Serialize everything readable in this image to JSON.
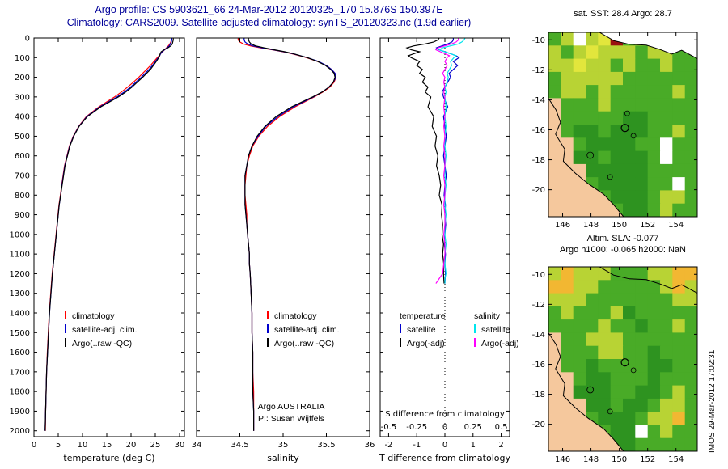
{
  "header": {
    "title_line1": "Argo profile: CS 5903621_66 24-Mar-2012 20120325_170 15.876S 150.397E",
    "title_line2": "Climatology: CARS2009. Satellite-adjusted climatology: synTS_20120323.nc (1.9d earlier)"
  },
  "colors": {
    "header_text": "#000099",
    "climatology": "#ff0000",
    "satellite": "#0000cd",
    "argo": "#000000",
    "salinity_satellite": "#00e5ee",
    "salinity_argo": "#ff00ff",
    "land": "#f5c89d"
  },
  "annotations": {
    "line1": "Argo AUSTRALIA",
    "line2": "PI: Susan Wijffels"
  },
  "watermark": "IMOS 29-Mar-2012 17:02:31",
  "chart_data": [
    {
      "id": "temperature",
      "type": "line",
      "xlabel": "temperature (deg C)",
      "xlim": [
        0,
        31
      ],
      "xticks": [
        0,
        5,
        10,
        15,
        20,
        25,
        30
      ],
      "ylim": [
        0,
        2030
      ],
      "yticks": [
        0,
        100,
        200,
        300,
        400,
        500,
        600,
        700,
        800,
        900,
        1000,
        1100,
        1200,
        1300,
        1400,
        1500,
        1600,
        1700,
        1800,
        1900,
        2000
      ],
      "depths": [
        0,
        10,
        20,
        30,
        40,
        50,
        60,
        70,
        80,
        90,
        100,
        120,
        140,
        160,
        180,
        200,
        225,
        250,
        275,
        300,
        350,
        400,
        450,
        500,
        550,
        600,
        650,
        700,
        750,
        800,
        850,
        900,
        950,
        1000,
        1050,
        1100,
        1150,
        1200,
        1300,
        1400,
        1500,
        1600,
        1700,
        1800,
        1900,
        2000
      ],
      "series": [
        {
          "name": "climatology",
          "color": "#ff0000",
          "values": [
            28.3,
            28.3,
            28.2,
            28.0,
            27.7,
            27.3,
            26.9,
            26.5,
            26.1,
            25.8,
            25.4,
            24.7,
            24.0,
            23.2,
            22.4,
            21.6,
            20.5,
            19.3,
            18.0,
            16.6,
            13.4,
            10.8,
            9.2,
            8.1,
            7.3,
            6.8,
            6.3,
            6.0,
            5.7,
            5.45,
            5.15,
            4.95,
            4.75,
            4.55,
            4.35,
            4.15,
            3.95,
            3.75,
            3.45,
            3.15,
            2.95,
            2.75,
            2.6,
            2.5,
            2.4,
            2.35
          ]
        },
        {
          "name": "satellite-adj. clim.",
          "color": "#0000cd",
          "values": [
            28.4,
            28.4,
            28.3,
            28.1,
            27.9,
            27.4,
            26.9,
            26.4,
            26.1,
            25.9,
            25.6,
            25.0,
            24.4,
            23.7,
            22.9,
            22.1,
            21.0,
            19.9,
            18.6,
            17.1,
            13.6,
            10.9,
            9.25,
            8.15,
            7.35,
            6.85,
            6.35,
            6.05,
            5.75,
            5.5,
            5.2,
            5.0,
            4.8,
            4.6,
            4.4,
            4.2,
            4.0,
            3.8,
            3.5,
            3.2,
            3.0,
            2.8,
            2.6,
            2.5,
            2.4,
            2.3
          ]
        },
        {
          "name": "Argo(..raw -QC)",
          "color": "#000000",
          "values": [
            28.7,
            28.7,
            28.6,
            28.5,
            28.2,
            27.6,
            26.8,
            26.2,
            26.0,
            25.9,
            25.7,
            25.2,
            24.6,
            24.0,
            23.2,
            22.4,
            21.3,
            20.2,
            18.9,
            17.4,
            13.8,
            11.0,
            9.3,
            8.2,
            7.4,
            6.9,
            6.4,
            6.1,
            5.8,
            5.5,
            5.2,
            5.0,
            4.8,
            4.6,
            4.4,
            4.2,
            4.0,
            3.8,
            3.5,
            3.2,
            3.0,
            2.8,
            2.6,
            2.5,
            2.4,
            2.3
          ]
        }
      ]
    },
    {
      "id": "salinity",
      "type": "line",
      "xlabel": "salinity",
      "xlim": [
        34,
        36
      ],
      "xticks": [
        34,
        34.5,
        35,
        35.5,
        36
      ],
      "xtick_labels": [
        "34",
        "34.5",
        "35",
        "35.5",
        "36"
      ],
      "ylim": [
        0,
        2030
      ],
      "yticks": [
        0,
        100,
        200,
        300,
        400,
        500,
        600,
        700,
        800,
        900,
        1000,
        1100,
        1200,
        1300,
        1400,
        1500,
        1600,
        1700,
        1800,
        1900,
        2000
      ],
      "depths": [
        0,
        10,
        20,
        30,
        40,
        50,
        60,
        70,
        80,
        90,
        100,
        120,
        140,
        160,
        180,
        200,
        225,
        250,
        275,
        300,
        350,
        400,
        450,
        500,
        550,
        600,
        650,
        700,
        750,
        800,
        850,
        900,
        950,
        1000,
        1050,
        1100,
        1150,
        1200,
        1300,
        1400,
        1500,
        1600,
        1700,
        1800,
        1900,
        2000
      ],
      "series": [
        {
          "name": "climatology",
          "color": "#ff0000",
          "values": [
            34.48,
            34.48,
            34.5,
            34.54,
            34.62,
            34.74,
            34.88,
            35.0,
            35.1,
            35.19,
            35.27,
            35.4,
            35.5,
            35.56,
            35.6,
            35.61,
            35.59,
            35.54,
            35.46,
            35.36,
            35.14,
            34.96,
            34.82,
            34.72,
            34.65,
            34.61,
            34.58,
            34.57,
            34.56,
            34.56,
            34.57,
            34.58,
            34.58,
            34.59,
            34.6,
            34.61,
            34.61,
            34.62,
            34.63,
            34.64,
            34.64,
            34.65,
            34.65,
            34.66,
            34.66,
            34.66
          ]
        },
        {
          "name": "satellite-adj. clim.",
          "color": "#0000cd",
          "values": [
            34.55,
            34.55,
            34.56,
            34.59,
            34.65,
            34.76,
            34.89,
            35.01,
            35.11,
            35.2,
            35.28,
            35.41,
            35.5,
            35.56,
            35.6,
            35.61,
            35.58,
            35.53,
            35.45,
            35.35,
            35.12,
            34.94,
            34.8,
            34.71,
            34.64,
            34.6,
            34.58,
            34.56,
            34.56,
            34.56,
            34.56,
            34.57,
            34.58,
            34.59,
            34.6,
            34.61,
            34.61,
            34.62,
            34.63,
            34.64,
            34.64,
            34.65,
            34.65,
            34.65,
            34.66,
            34.66
          ]
        },
        {
          "name": "Argo(..raw -QC)",
          "color": "#000000",
          "values": [
            34.6,
            34.6,
            34.61,
            34.63,
            34.68,
            34.78,
            34.9,
            35.02,
            35.12,
            35.2,
            35.28,
            35.4,
            35.49,
            35.55,
            35.59,
            35.6,
            35.58,
            35.53,
            35.45,
            35.34,
            35.1,
            34.92,
            34.79,
            34.7,
            34.64,
            34.6,
            34.58,
            34.56,
            34.56,
            34.56,
            34.56,
            34.57,
            34.58,
            34.59,
            34.6,
            34.61,
            34.61,
            34.62,
            34.63,
            34.64,
            34.64,
            34.65,
            34.65,
            34.65,
            34.66,
            34.66
          ]
        }
      ]
    },
    {
      "id": "difference",
      "type": "line",
      "xlabel": "T difference from climatology",
      "xlim": [
        -2.3,
        2.3
      ],
      "xticks": [
        -2,
        -1,
        0,
        1,
        2
      ],
      "xtick_labels": [
        "-2",
        "-1",
        "0",
        "1",
        "2"
      ],
      "ylim": [
        0,
        2030
      ],
      "yticks": [
        0,
        100,
        200,
        300,
        400,
        500,
        600,
        700,
        800,
        900,
        1000,
        1100,
        1200,
        1300,
        1400,
        1500,
        1600,
        1700,
        1800,
        1900,
        2000
      ],
      "zero_line": true,
      "legend_headers": [
        "temperature",
        "salinity"
      ],
      "inner_axis": {
        "label": "S difference from climatology",
        "ticks": [
          -0.5,
          -0.25,
          0,
          0.25,
          0.5
        ],
        "labels": [
          "-0.5",
          "-0.25",
          "0",
          "0.25",
          "0.5"
        ],
        "scale": 4
      },
      "depths": [
        0,
        10,
        20,
        30,
        40,
        50,
        60,
        70,
        80,
        90,
        100,
        120,
        140,
        160,
        180,
        200,
        225,
        250,
        275,
        300,
        350,
        400,
        450,
        500,
        550,
        600,
        650,
        700,
        750,
        800,
        850,
        900,
        950,
        1000,
        1050,
        1100,
        1150,
        1200,
        1225,
        1250
      ],
      "series": [
        {
          "name": "satellite",
          "color": "#0000cd",
          "values": [
            0.3,
            0.3,
            0.25,
            0.1,
            -0.1,
            -0.3,
            -0.2,
            0.0,
            0.2,
            0.4,
            0.5,
            0.3,
            0.45,
            0.3,
            0.15,
            0.2,
            0.1,
            0.0,
            -0.1,
            -0.05,
            0.1,
            -0.05,
            0.0,
            0.05,
            0.0,
            -0.05,
            0.0,
            0.05,
            0.0,
            -0.03,
            0.02,
            0.0,
            0.03,
            0.0,
            -0.02,
            0.02,
            0.0,
            0.02,
            0.01,
            0.0
          ]
        },
        {
          "name": "Argo(-adj)",
          "color": "#000000",
          "values": [
            -0.2,
            -0.25,
            -0.4,
            -0.7,
            -1.1,
            -1.35,
            -1.2,
            -0.9,
            -1.1,
            -1.3,
            -1.2,
            -0.9,
            -1.0,
            -0.8,
            -0.9,
            -0.7,
            -0.8,
            -0.6,
            -0.7,
            -0.5,
            -0.6,
            -0.4,
            -0.45,
            -0.3,
            -0.35,
            -0.25,
            -0.3,
            -0.2,
            -0.15,
            -0.2,
            -0.1,
            -0.12,
            -0.08,
            -0.1,
            -0.05,
            -0.08,
            -0.04,
            -0.05,
            -0.04,
            -0.03
          ]
        },
        {
          "name": "satellite",
          "color": "#00e5ee",
          "scale": 4,
          "values": [
            0.18,
            0.17,
            0.15,
            0.12,
            0.05,
            -0.02,
            -0.05,
            0.0,
            0.05,
            0.1,
            0.08,
            0.05,
            0.06,
            0.04,
            0.02,
            0.03,
            0.02,
            0.0,
            0.01,
            0.0,
            0.01,
            0.0,
            0.01,
            0.0,
            0.0,
            0.01,
            0.0,
            0.0,
            0.01,
            0.0,
            0.0,
            0.01,
            0.0,
            0.0,
            0.01,
            0.0,
            0.0,
            0.01,
            0.0,
            0.0
          ]
        },
        {
          "name": "Argo(-adj)",
          "color": "#ff00ff",
          "scale": 4,
          "values": [
            0.12,
            0.12,
            0.1,
            0.06,
            0.0,
            -0.06,
            -0.08,
            -0.04,
            0.0,
            0.04,
            0.02,
            0.0,
            0.02,
            0.0,
            -0.02,
            0.0,
            -0.01,
            0.0,
            -0.01,
            0.0,
            -0.01,
            0.0,
            -0.01,
            0.0,
            -0.01,
            0.0,
            0.0,
            -0.01,
            0.0,
            0.0,
            -0.01,
            0.0,
            0.0,
            -0.01,
            0.0,
            0.0,
            -0.01,
            -0.02,
            -0.05,
            -0.08
          ]
        }
      ]
    },
    {
      "id": "sst_map",
      "type": "heatmap",
      "title": "sat. SST: 28.4 Argo: 28.7",
      "xlim": [
        145,
        155.5
      ],
      "ylim": [
        -21.8,
        -9.5
      ],
      "xticks": [
        146,
        148,
        150,
        152,
        154
      ],
      "yticks": [
        -10,
        -12,
        -14,
        -16,
        -18,
        -20
      ],
      "palette": {
        "G": "#2e9320",
        "g": "#49ab27",
        "l": "#86c43a",
        "y": "#b8d334",
        "Y": "#e2e63c",
        "o": "#f2b732",
        "w": "#ffffff",
        "r": "#991111",
        "t": "#f5c89d"
      },
      "grid": [
        "gywyYrgyyygg",
        "ygyYyyygyygg",
        "yyYyygyggygg",
        "gyyyyygggggg",
        "gyygygggggyg",
        "tgggyggggggg",
        "tgggggGGgggg",
        "tgGGgGGGggyg",
        "ttgGGGGggwgg",
        "ttGGgGGGgwgg",
        "tttGGGGGgggg",
        "tttgGGGGggwg",
        "ttttgGGGgyyg",
        "ttttGgGGgygg"
      ],
      "land_color": "#f5c89d",
      "land": [
        [
          145.0,
          -13.9
        ],
        [
          145.55,
          -14.7
        ],
        [
          145.85,
          -15.5
        ],
        [
          145.5,
          -16.3
        ],
        [
          146.15,
          -17.3
        ],
        [
          146.05,
          -18.1
        ],
        [
          146.9,
          -18.9
        ],
        [
          147.8,
          -19.6
        ],
        [
          148.9,
          -20.3
        ],
        [
          149.6,
          -21.0
        ],
        [
          150.3,
          -21.8
        ],
        [
          145.0,
          -21.8
        ]
      ],
      "png_fill": "#ffffff",
      "png": [
        [
          148.6,
          -9.5
        ],
        [
          149.6,
          -10.05
        ],
        [
          150.7,
          -10.3
        ],
        [
          151.9,
          -10.35
        ],
        [
          152.9,
          -10.65
        ],
        [
          153.7,
          -10.95
        ],
        [
          154.4,
          -10.7
        ],
        [
          155.5,
          -11.25
        ],
        [
          155.5,
          -9.5
        ]
      ],
      "reefs": [
        {
          "lon": 147.95,
          "lat": -17.7,
          "r": 4
        },
        {
          "lon": 149.35,
          "lat": -19.15,
          "r": 3
        },
        {
          "lon": 151.0,
          "lat": -16.4,
          "r": 3
        },
        {
          "lon": 150.55,
          "lat": -14.9,
          "r": 3
        }
      ],
      "marker": {
        "lon": 150.397,
        "lat": -15.876
      }
    },
    {
      "id": "sla_map",
      "type": "heatmap",
      "title_line1": "Altim. SLA: -0.077",
      "title_line2": "Argo h1000: -0.065 h2000: NaN",
      "xlim": [
        145,
        155.5
      ],
      "ylim": [
        -21.8,
        -9.5
      ],
      "xticks": [
        146,
        148,
        150,
        152,
        154
      ],
      "yticks": [
        -10,
        -12,
        -14,
        -16,
        -18,
        -20
      ],
      "palette": {
        "G": "#2e9320",
        "g": "#49ab27",
        "l": "#86c43a",
        "y": "#b8d334",
        "Y": "#e2e63c",
        "o": "#f2b732",
        "w": "#ffffff",
        "r": "#991111",
        "t": "#f5c89d"
      },
      "grid": [
        "yoyyygggyyoo",
        "ooyygggggyoy",
        "yyygggggggyy",
        "gygggyGggggg",
        "ggggyggGggyg",
        "tggyyygggggg",
        "tgggyyggGggg",
        "tggGggggGGgg",
        "ttgGGgggGggg",
        "ttGGGggGGgyg",
        "tttGGgGGgyyg",
        "tttgGGGgyyog",
        "ttttgGGwgygg",
        "ttttGGGggggg"
      ],
      "land_color": "#f5c89d",
      "land": [
        [
          145.0,
          -13.9
        ],
        [
          145.55,
          -14.7
        ],
        [
          145.85,
          -15.5
        ],
        [
          145.5,
          -16.3
        ],
        [
          146.15,
          -17.3
        ],
        [
          146.05,
          -18.1
        ],
        [
          146.9,
          -18.9
        ],
        [
          147.8,
          -19.6
        ],
        [
          148.9,
          -20.3
        ],
        [
          149.6,
          -21.0
        ],
        [
          150.3,
          -21.8
        ],
        [
          145.0,
          -21.8
        ]
      ],
      "png_fill": "none",
      "png": [
        [
          148.6,
          -9.5
        ],
        [
          149.6,
          -10.05
        ],
        [
          150.7,
          -10.3
        ],
        [
          151.9,
          -10.35
        ],
        [
          152.9,
          -10.65
        ],
        [
          153.7,
          -10.95
        ],
        [
          154.4,
          -10.7
        ],
        [
          155.5,
          -11.25
        ],
        [
          155.5,
          -9.5
        ]
      ],
      "reefs": [
        {
          "lon": 147.95,
          "lat": -17.7,
          "r": 4
        },
        {
          "lon": 149.35,
          "lat": -19.15,
          "r": 3
        },
        {
          "lon": 151.0,
          "lat": -16.4,
          "r": 3
        }
      ],
      "marker": {
        "lon": 150.397,
        "lat": -15.876
      }
    }
  ]
}
